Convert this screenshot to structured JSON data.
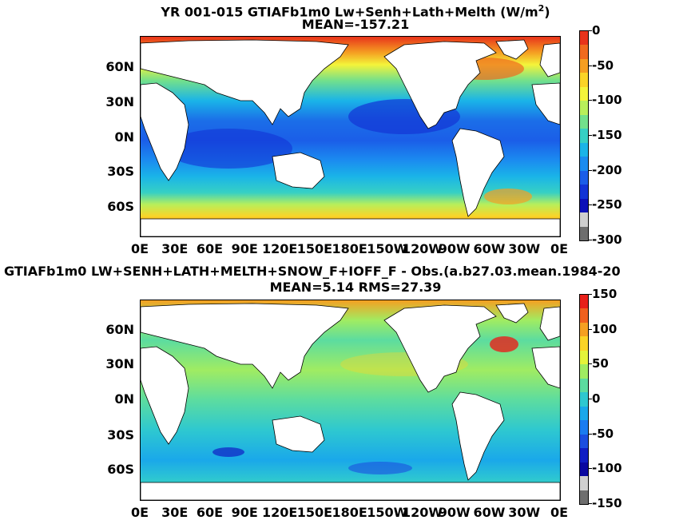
{
  "panels": [
    {
      "id": "top",
      "title_line1_pre": "YR 001-015 GTIAFb1m0 Lw+Senh+Lath+Melth (W/m",
      "title_line1_sup": "2",
      "title_line1_post": ")",
      "title_line2": "MEAN=-157.21",
      "lat_labels": [
        "60N",
        "30N",
        "0N",
        "30S",
        "60S"
      ],
      "lon_labels": [
        "0E",
        "30E",
        "60E",
        "90E",
        "120E",
        "150E",
        "180E",
        "150W",
        "120W",
        "90W",
        "60W",
        "30W",
        "0E"
      ],
      "colorbar": {
        "ticks": [
          "0",
          "-50",
          "-100",
          "-150",
          "-200",
          "-250",
          "-300"
        ],
        "colors": [
          "#e8331b",
          "#f06a1e",
          "#f59e22",
          "#fbd427",
          "#f4f43a",
          "#b8ef5a",
          "#72e08c",
          "#36d0c4",
          "#1ab4e8",
          "#1b8cf0",
          "#1b5ee8",
          "#1234d6",
          "#0c10b8",
          "#cfcfcf",
          "#6e6e6e"
        ]
      }
    },
    {
      "id": "bottom",
      "title_line1": "GTIAFb1m0 LW+SENH+LATH+MELTH+SNOW_F+IOFF_F - Obs.(a.b27.03.mean.1984-20",
      "title_line2": "MEAN=5.14 RMS=27.39",
      "lat_labels": [
        "60N",
        "30N",
        "0N",
        "30S",
        "60S"
      ],
      "lon_labels": [
        "0E",
        "30E",
        "60E",
        "90E",
        "120E",
        "150E",
        "180E",
        "150W",
        "120W",
        "90W",
        "60W",
        "30W",
        "0E"
      ],
      "colorbar": {
        "ticks": [
          "150",
          "100",
          "50",
          "0",
          "-50",
          "-100",
          "-150"
        ],
        "colors": [
          "#e8201a",
          "#f0601e",
          "#f5a022",
          "#fbd427",
          "#e4f43a",
          "#a0ec62",
          "#5cdca0",
          "#2ec8d0",
          "#1aa8ea",
          "#1b7cf0",
          "#1b4ee0",
          "#101ec4",
          "#0a08a0",
          "#cfcfcf",
          "#6e6e6e"
        ]
      }
    }
  ]
}
